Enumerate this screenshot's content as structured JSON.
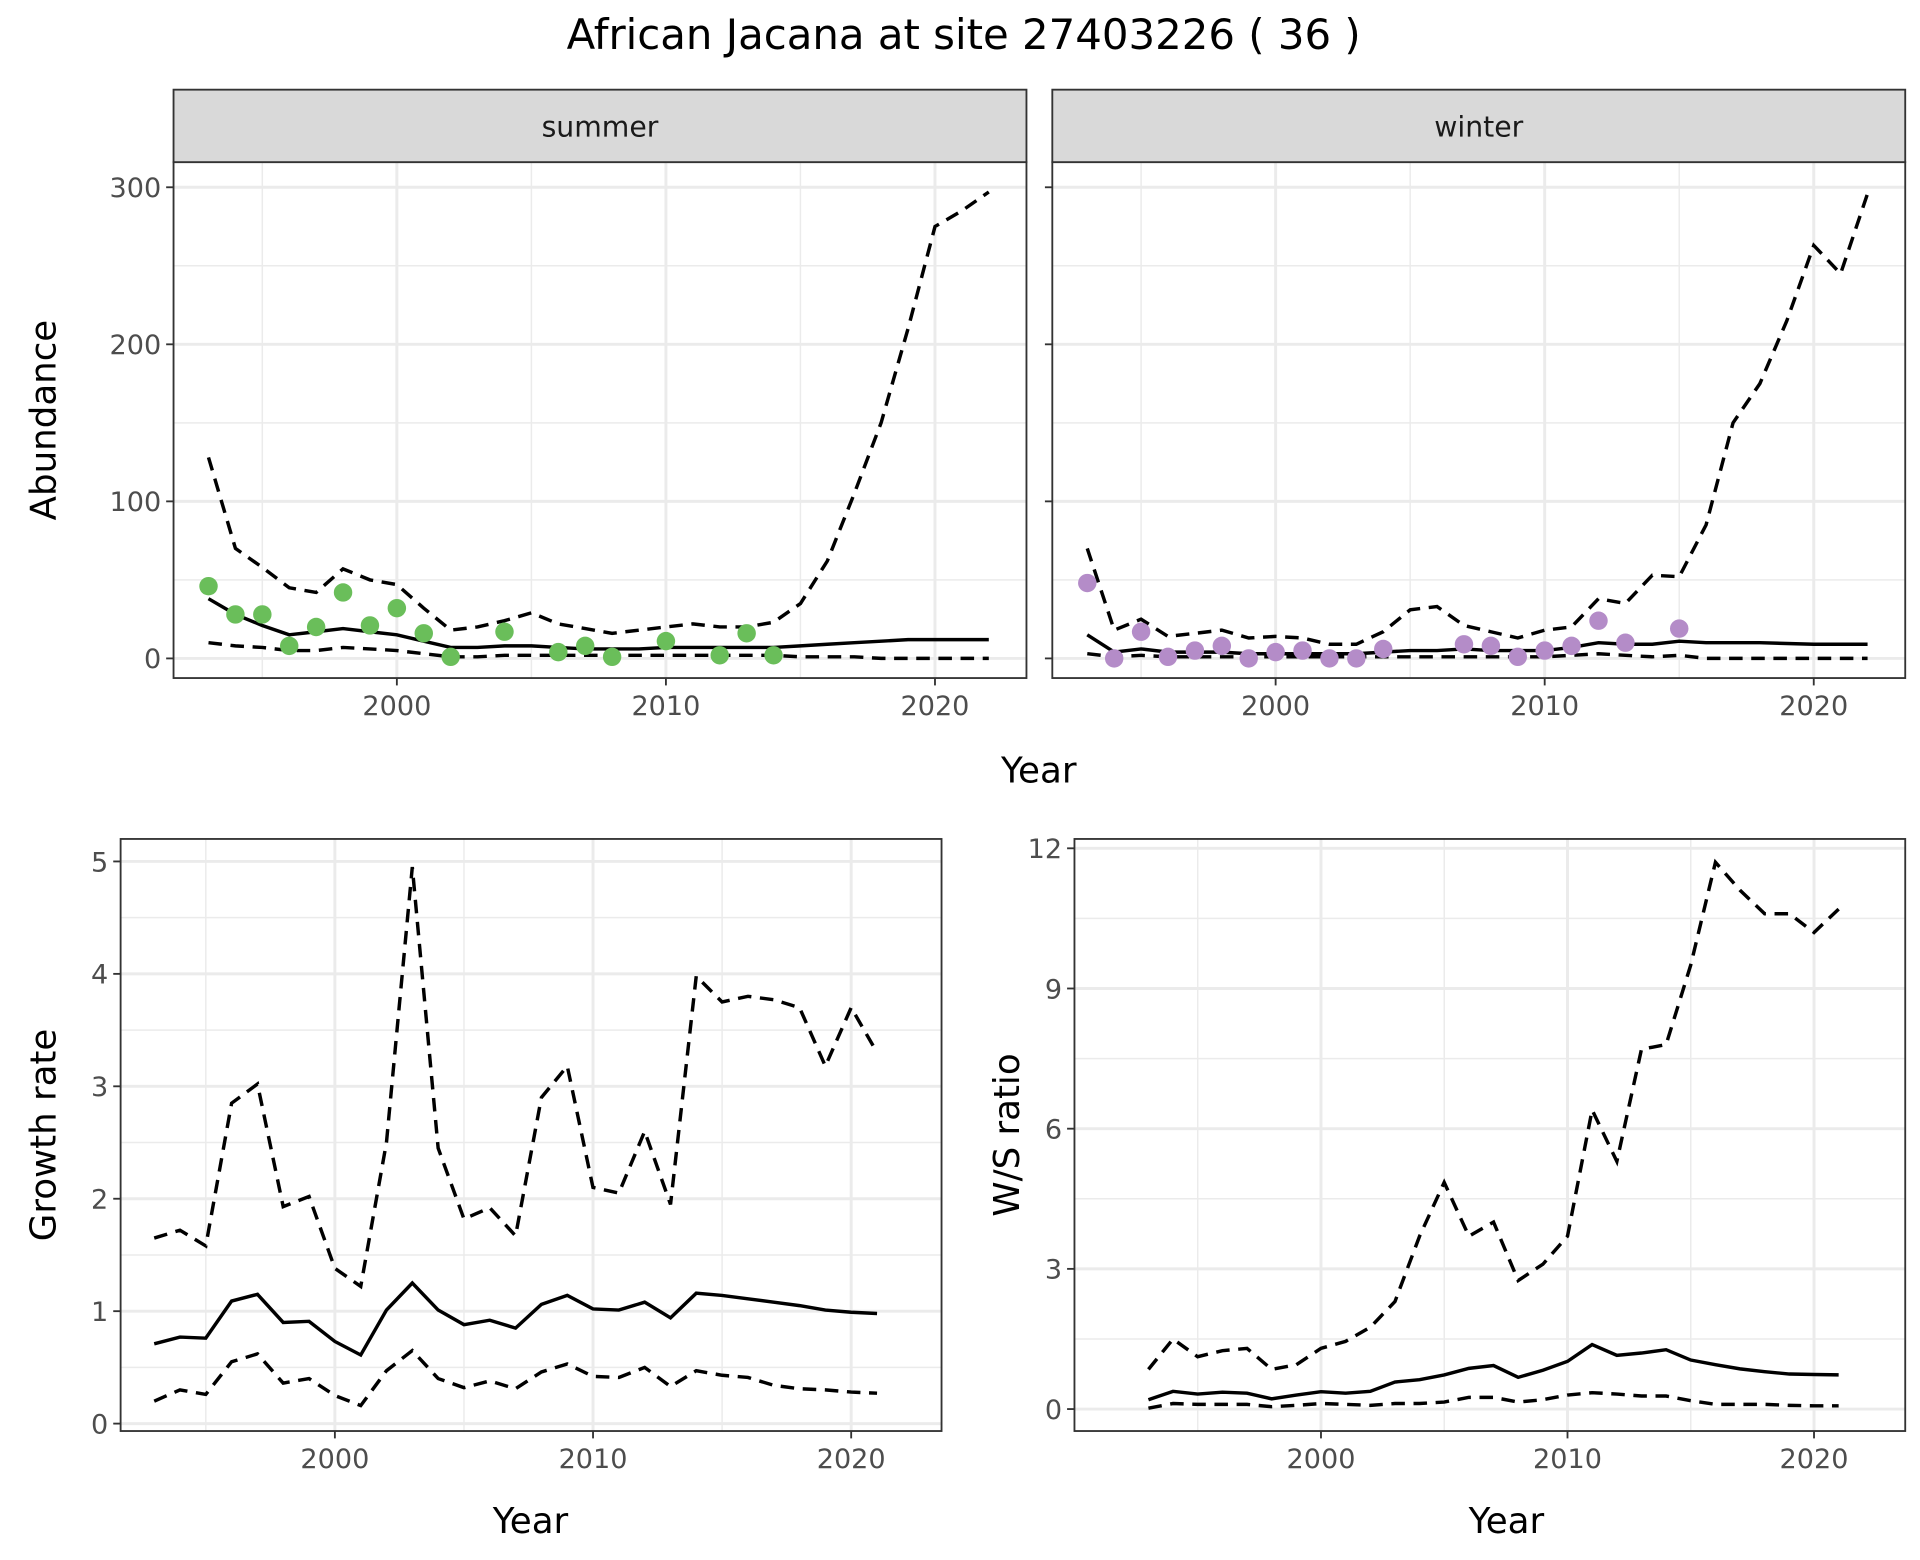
{
  "title": "African Jacana at site 27403226 ( 36 )",
  "colors": {
    "summer": "#6ABE5A",
    "winter": "#B48CC8",
    "line": "#000000",
    "strip": "#D9D9D9"
  },
  "chart_data": [
    {
      "type": "line",
      "id": "abundance",
      "facets": [
        "summer",
        "winter"
      ],
      "xlabel": "Year",
      "ylabel": "Abundance",
      "xticks": [
        2000,
        2010,
        2020
      ],
      "yticks": [
        0,
        100,
        200,
        300
      ],
      "xlim": [
        1991.7,
        2023.4
      ],
      "ylim": [
        -12.5,
        316
      ],
      "grid": true,
      "summer": {
        "points": {
          "x": [
            1993,
            1994,
            1995,
            1996,
            1997,
            1998,
            1999,
            2000,
            2001,
            2002,
            2004,
            2006,
            2007,
            2008,
            2010,
            2012,
            2013,
            2014
          ],
          "y": [
            46,
            28,
            28,
            8,
            20,
            42,
            21,
            32,
            16,
            1,
            17,
            4,
            8,
            1,
            11,
            2,
            16,
            2
          ]
        },
        "x": [
          1993,
          1994,
          1995,
          1996,
          1997,
          1998,
          1999,
          2000,
          2001,
          2002,
          2003,
          2004,
          2005,
          2006,
          2007,
          2008,
          2009,
          2010,
          2011,
          2012,
          2013,
          2014,
          2015,
          2016,
          2017,
          2018,
          2019,
          2020,
          2021,
          2022
        ],
        "mean": [
          38,
          28,
          21,
          15,
          17,
          19,
          17,
          15,
          11,
          7,
          7,
          8,
          8,
          7,
          6,
          6,
          6,
          7,
          7,
          7,
          7,
          7,
          8,
          9,
          10,
          11,
          12,
          12,
          12,
          12
        ],
        "upper": [
          128,
          70,
          58,
          45,
          42,
          57,
          50,
          47,
          32,
          18,
          20,
          24,
          29,
          22,
          19,
          16,
          18,
          20,
          22,
          20,
          20,
          23,
          35,
          62,
          105,
          150,
          210,
          275,
          285,
          297
        ],
        "lower": [
          10,
          8,
          7,
          5,
          5,
          7,
          6,
          5,
          3,
          1,
          1,
          2,
          2,
          2,
          2,
          2,
          2,
          2,
          2,
          2,
          2,
          2,
          1,
          1,
          1,
          0,
          0,
          0,
          0,
          0
        ]
      },
      "winter": {
        "points": {
          "x": [
            1993,
            1994,
            1995,
            1996,
            1997,
            1998,
            1999,
            2000,
            2001,
            2002,
            2003,
            2004,
            2007,
            2008,
            2009,
            2010,
            2011,
            2012,
            2013,
            2015
          ],
          "y": [
            48,
            0,
            17,
            1,
            5,
            8,
            0,
            4,
            5,
            0,
            0,
            6,
            9,
            8,
            1,
            5,
            8,
            24,
            10,
            19
          ]
        },
        "x": [
          1993,
          1994,
          1995,
          1996,
          1997,
          1998,
          1999,
          2000,
          2001,
          2002,
          2003,
          2004,
          2005,
          2006,
          2007,
          2008,
          2009,
          2010,
          2011,
          2012,
          2013,
          2014,
          2015,
          2016,
          2017,
          2018,
          2019,
          2020,
          2021,
          2022
        ],
        "mean": [
          15,
          4,
          6,
          4,
          4,
          4,
          3,
          3,
          3,
          3,
          3,
          4,
          5,
          5,
          6,
          5,
          5,
          5,
          7,
          10,
          9,
          9,
          11,
          10,
          10,
          10,
          9.5,
          9,
          9,
          9
        ],
        "upper": [
          70,
          18,
          25,
          14,
          16,
          18,
          13,
          14,
          13,
          9,
          9,
          17,
          31,
          33,
          21,
          17,
          13,
          18,
          20,
          38,
          35,
          53,
          52,
          85,
          150,
          175,
          215,
          263,
          245,
          296
        ],
        "lower": [
          3,
          1,
          2,
          1,
          1,
          1,
          1,
          1,
          1,
          1,
          1,
          1,
          1,
          1,
          1,
          1,
          1,
          1,
          2,
          3,
          2,
          1,
          2,
          0,
          0,
          0,
          0,
          0,
          0,
          0
        ]
      }
    },
    {
      "type": "line",
      "id": "growth",
      "xlabel": "Year",
      "ylabel": "Growth rate",
      "xticks": [
        2000,
        2010,
        2020
      ],
      "yticks": [
        0,
        1,
        2,
        3,
        4,
        5
      ],
      "xlim": [
        1991.7,
        2023.5
      ],
      "ylim": [
        -0.066,
        5.2
      ],
      "grid": true,
      "x": [
        1993,
        1994,
        1995,
        1996,
        1997,
        1998,
        1999,
        2000,
        2001,
        2002,
        2003,
        2004,
        2005,
        2006,
        2007,
        2008,
        2009,
        2010,
        2011,
        2012,
        2013,
        2014,
        2015,
        2016,
        2017,
        2018,
        2019,
        2020,
        2021
      ],
      "mean": [
        0.71,
        0.77,
        0.76,
        1.09,
        1.15,
        0.9,
        0.91,
        0.73,
        0.61,
        1.01,
        1.25,
        1.01,
        0.88,
        0.92,
        0.85,
        1.06,
        1.14,
        1.02,
        1.01,
        1.08,
        0.94,
        1.16,
        1.14,
        1.11,
        1.08,
        1.05,
        1.01,
        0.99,
        0.98
      ],
      "upper": [
        1.65,
        1.72,
        1.58,
        2.85,
        3.02,
        1.93,
        2.02,
        1.38,
        1.22,
        2.5,
        4.95,
        2.45,
        1.82,
        1.92,
        1.67,
        2.9,
        3.18,
        2.1,
        2.05,
        2.6,
        1.95,
        3.98,
        3.75,
        3.8,
        3.77,
        3.7,
        3.18,
        3.7,
        3.3
      ],
      "lower": [
        0.2,
        0.3,
        0.26,
        0.55,
        0.62,
        0.36,
        0.4,
        0.25,
        0.16,
        0.47,
        0.65,
        0.4,
        0.32,
        0.38,
        0.31,
        0.46,
        0.53,
        0.42,
        0.41,
        0.5,
        0.33,
        0.47,
        0.43,
        0.41,
        0.34,
        0.31,
        0.3,
        0.28,
        0.27
      ]
    },
    {
      "type": "line",
      "id": "ratio",
      "xlabel": "Year",
      "ylabel": "W/S ratio",
      "xticks": [
        2000,
        2010,
        2020
      ],
      "yticks": [
        0,
        3,
        6,
        9,
        12
      ],
      "xlim": [
        1990.0,
        2023.7
      ],
      "ylim": [
        -0.47,
        12.2
      ],
      "grid": true,
      "x": [
        1993,
        1994,
        1995,
        1996,
        1997,
        1998,
        1999,
        2000,
        2001,
        2002,
        2003,
        2004,
        2005,
        2006,
        2007,
        2008,
        2009,
        2010,
        2011,
        2012,
        2013,
        2014,
        2015,
        2016,
        2017,
        2018,
        2019,
        2020,
        2021
      ],
      "mean": [
        0.2,
        0.38,
        0.32,
        0.36,
        0.34,
        0.22,
        0.3,
        0.37,
        0.34,
        0.38,
        0.58,
        0.63,
        0.73,
        0.87,
        0.93,
        0.68,
        0.83,
        1.02,
        1.38,
        1.15,
        1.2,
        1.27,
        1.05,
        0.95,
        0.86,
        0.8,
        0.75,
        0.74,
        0.73
      ],
      "upper": [
        0.85,
        1.5,
        1.12,
        1.25,
        1.3,
        0.85,
        0.95,
        1.3,
        1.45,
        1.75,
        2.3,
        3.7,
        4.85,
        3.7,
        4.0,
        2.75,
        3.1,
        3.7,
        6.4,
        5.3,
        7.7,
        7.8,
        9.5,
        11.7,
        11.1,
        10.6,
        10.6,
        10.2,
        10.7
      ],
      "lower": [
        0.02,
        0.12,
        0.1,
        0.1,
        0.1,
        0.05,
        0.08,
        0.12,
        0.1,
        0.08,
        0.12,
        0.12,
        0.15,
        0.25,
        0.25,
        0.15,
        0.2,
        0.3,
        0.35,
        0.32,
        0.28,
        0.28,
        0.18,
        0.1,
        0.1,
        0.1,
        0.08,
        0.07,
        0.07
      ]
    }
  ]
}
